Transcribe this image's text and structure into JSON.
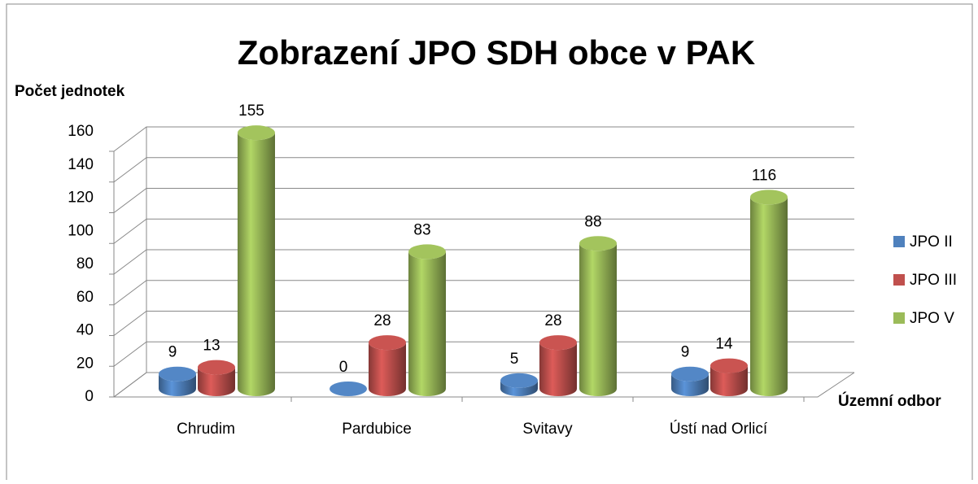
{
  "chart_data": {
    "type": "bar3d",
    "title": "Zobrazení JPO SDH obce v PAK",
    "y_label": "Počet jednotek",
    "x_label": "Územní odbor",
    "categories": [
      "Chrudim",
      "Pardubice",
      "Svitavy",
      "Ústí nad Orlicí"
    ],
    "series": [
      {
        "name": "JPO II",
        "color": "#4f81bd",
        "values": [
          9,
          0,
          5,
          9
        ]
      },
      {
        "name": "JPO III",
        "color": "#c0504d",
        "values": [
          13,
          28,
          28,
          14
        ]
      },
      {
        "name": "JPO V",
        "color": "#9bbb59",
        "values": [
          155,
          83,
          88,
          116
        ]
      }
    ],
    "ylim": [
      0,
      160
    ],
    "yticks": [
      0,
      20,
      40,
      60,
      80,
      100,
      120,
      140,
      160
    ],
    "grid": true,
    "legend": "right"
  }
}
